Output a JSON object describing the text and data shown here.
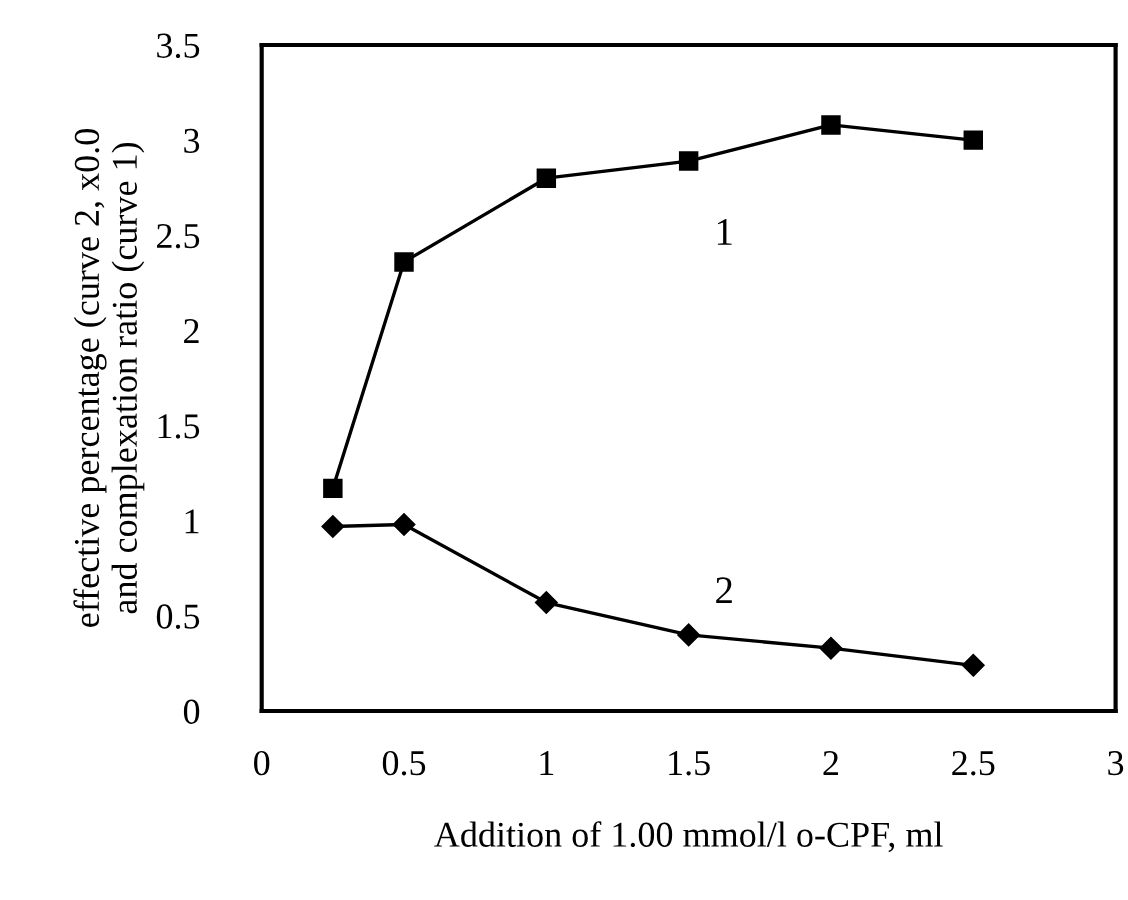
{
  "chart_data": {
    "type": "line",
    "xlabel": "Addition of 1.00 mmol/l o-CPF, ml",
    "ylabel": "effective percentage (curve 2, x0.0\nand complexation ratio (curve 1)",
    "x": [
      0.25,
      0.5,
      1,
      1.5,
      2,
      2.5
    ],
    "series": [
      {
        "color": "#000000",
        "marker": "square",
        "values": [
          1.17,
          2.36,
          2.8,
          2.89,
          3.08,
          3.0
        ]
      },
      {
        "color": "#000000",
        "marker": "diamond",
        "values": [
          0.97,
          0.98,
          0.57,
          0.4,
          0.33,
          0.24
        ]
      }
    ],
    "xlim": [
      0,
      3
    ],
    "xticks": [
      0,
      0.5,
      1,
      1.5,
      2,
      2.5,
      3
    ],
    "ylim": [
      0,
      3.5
    ],
    "yticks": [
      0,
      0.5,
      1,
      1.5,
      2,
      2.5,
      3,
      3.5
    ],
    "annotations": [
      "1",
      "2"
    ],
    "line_style": "solid",
    "grid": false,
    "legend": false
  }
}
